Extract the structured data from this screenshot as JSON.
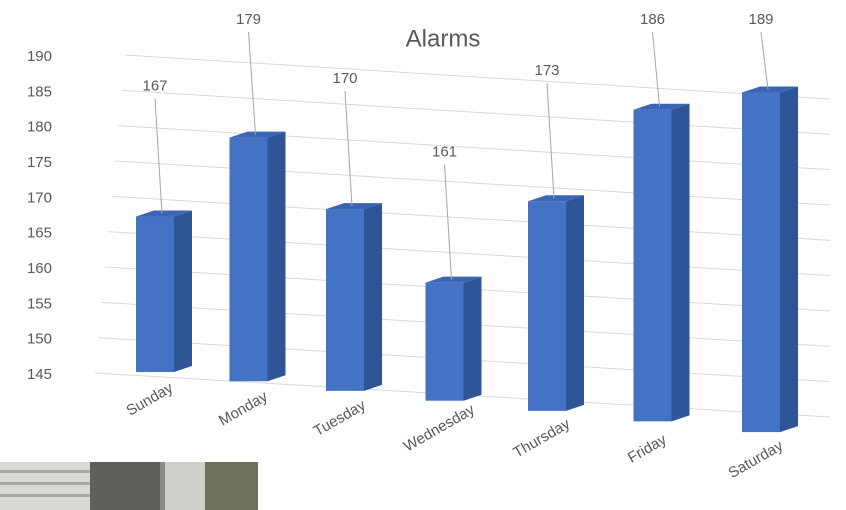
{
  "chart_data": {
    "type": "bar3d",
    "title": "Alarms",
    "categories": [
      "Sunday",
      "Monday",
      "Tuesday",
      "Wednesday",
      "Thursday",
      "Friday",
      "Saturday"
    ],
    "values": [
      167,
      179,
      170,
      161,
      173,
      186,
      189
    ],
    "color": "#4472c4",
    "ylim": [
      145,
      190
    ],
    "yticks": [
      145,
      150,
      155,
      160,
      165,
      170,
      175,
      180,
      185,
      190
    ],
    "grid": true
  }
}
